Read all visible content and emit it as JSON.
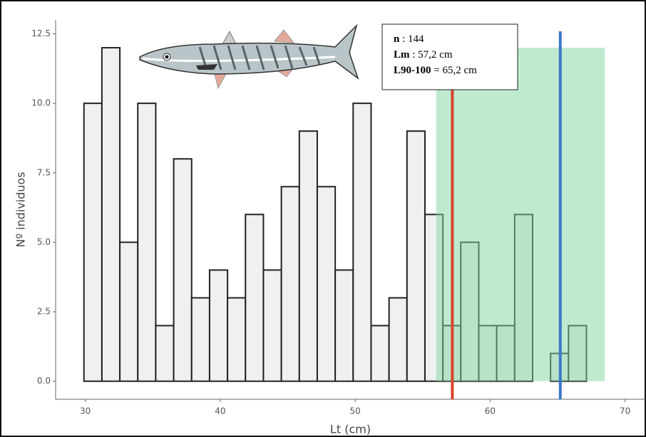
{
  "chart_data": {
    "type": "histogram",
    "xlabel": "Lt (cm)",
    "ylabel": "Nº individuos",
    "bins": [
      29.9,
      31.23,
      32.56,
      33.89,
      35.22,
      36.55,
      37.88,
      39.21,
      40.54,
      41.87,
      43.2,
      44.53,
      45.86,
      47.19,
      48.52,
      49.85,
      51.18,
      52.51,
      53.84,
      55.17,
      56.5,
      57.83,
      59.16,
      60.49,
      61.82,
      63.15,
      64.48,
      65.81,
      67.14,
      68.47,
      69.8
    ],
    "values": [
      10,
      12,
      5,
      10,
      2,
      8,
      3,
      4,
      3,
      6,
      4,
      7,
      9,
      7,
      4,
      10,
      2,
      3,
      9,
      6,
      2,
      5,
      2,
      2,
      6,
      0,
      1,
      2,
      0,
      0
    ],
    "color": "#f0f0f0",
    "xlim": [
      27.8,
      71.5
    ],
    "ylim": [
      -0.65,
      13
    ],
    "xticks": [
      30,
      40,
      50,
      60,
      70
    ],
    "yticks": [
      {
        "value": 0,
        "label": "0.0"
      },
      2.5,
      {
        "value": 5,
        "label": "5.0"
      },
      7.5,
      {
        "value": 10,
        "label": "10.0"
      },
      12.5
    ],
    "highlight": {
      "x0": 56,
      "x1": 68.5,
      "y": 12,
      "color": "#7fd6a0"
    },
    "vlines": [
      {
        "x": 57.2,
        "color": "#d9432b"
      },
      {
        "x": 65.2,
        "color": "#3a78c9"
      }
    ],
    "annotation": [
      {
        "bold": "n",
        "rest": " : 144"
      },
      {
        "bold": "Lm",
        "rest": " : 57,2 cm"
      },
      {
        "bold": "L90-100",
        "rest": " = 65,2 cm"
      }
    ]
  }
}
